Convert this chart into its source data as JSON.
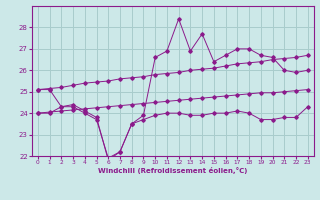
{
  "x": [
    0,
    1,
    2,
    3,
    4,
    5,
    6,
    7,
    8,
    9,
    10,
    11,
    12,
    13,
    14,
    15,
    16,
    17,
    18,
    19,
    20,
    21,
    22,
    23
  ],
  "line_upper_linear": [
    25.1,
    25.15,
    25.2,
    25.3,
    25.4,
    25.45,
    25.5,
    25.6,
    25.65,
    25.7,
    25.8,
    25.85,
    25.9,
    26.0,
    26.05,
    26.1,
    26.2,
    26.3,
    26.35,
    26.4,
    26.5,
    26.55,
    26.6,
    26.7
  ],
  "line_lower_linear": [
    24.0,
    24.05,
    24.1,
    24.15,
    24.2,
    24.25,
    24.3,
    24.35,
    24.4,
    24.45,
    24.5,
    24.55,
    24.6,
    24.65,
    24.7,
    24.75,
    24.8,
    24.85,
    24.9,
    24.95,
    24.95,
    25.0,
    25.05,
    25.1
  ],
  "line_wavy_upper": [
    25.1,
    25.1,
    24.3,
    24.4,
    24.1,
    23.8,
    21.8,
    22.2,
    23.5,
    23.9,
    26.6,
    26.9,
    28.4,
    26.9,
    27.7,
    26.4,
    26.7,
    27.0,
    27.0,
    26.7,
    26.6,
    26.0,
    25.9,
    26.0
  ],
  "line_wavy_lower": [
    24.0,
    24.0,
    24.3,
    24.3,
    24.0,
    23.7,
    21.9,
    22.2,
    23.5,
    23.7,
    23.9,
    24.0,
    24.0,
    23.9,
    23.9,
    24.0,
    24.0,
    24.1,
    24.0,
    23.7,
    23.7,
    23.8,
    23.8,
    24.3
  ],
  "color": "#8b1a8b",
  "background": "#cce8e8",
  "grid_color": "#a8cccc",
  "xlabel": "Windchill (Refroidissement éolien,°C)",
  "ylim": [
    22,
    29
  ],
  "xlim": [
    -0.5,
    23.5
  ],
  "yticks": [
    22,
    23,
    24,
    25,
    26,
    27,
    28
  ],
  "xticks": [
    0,
    1,
    2,
    3,
    4,
    5,
    6,
    7,
    8,
    9,
    10,
    11,
    12,
    13,
    14,
    15,
    16,
    17,
    18,
    19,
    20,
    21,
    22,
    23
  ]
}
